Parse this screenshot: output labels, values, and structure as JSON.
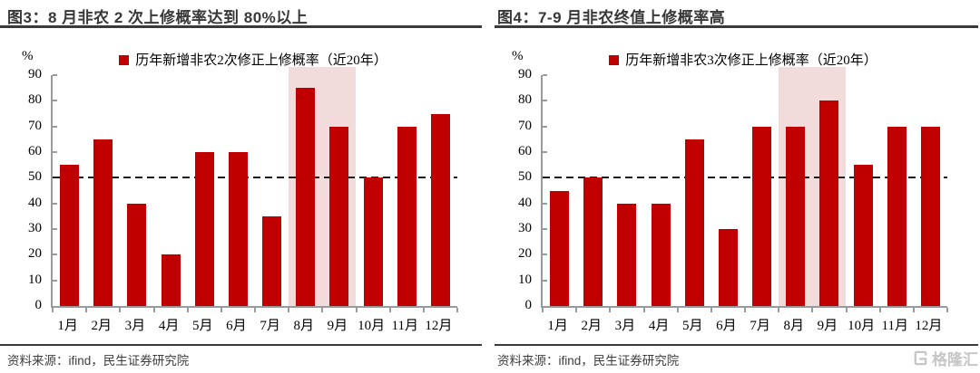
{
  "figures": [
    {
      "title": "图3：8 月非农 2 次上修概率达到 80%以上",
      "legend": "历年新增非农2次修正上修概率（近20年）",
      "y_unit_label": "%",
      "source_label": "资料来源：ifind，民生证券研究院"
    },
    {
      "title": "图4：7-9 月非农终值上修概率高",
      "legend": "历年新增非农3次修正上修概率（近20年）",
      "y_unit_label": "%",
      "source_label": "资料来源：ifind，民生证券研究院"
    }
  ],
  "watermark": {
    "text": "格隆汇",
    "icon": "gelonghui-G-square"
  },
  "colors": {
    "bar": "#C00000",
    "band": "#F2DCDB",
    "axis": "#9A9A9A",
    "reference_line": "#1A1A1A",
    "title_text": "#383838",
    "rule": "#3A3A3A",
    "source_text": "#3D3D3D",
    "watermark": "#C6C6C6"
  },
  "chart_data": [
    {
      "type": "bar",
      "title": "图3：8 月非农 2 次上修概率达到 80%以上",
      "legend": [
        "历年新增非农2次修正上修概率（近20年）"
      ],
      "legend_position": "top",
      "categories": [
        "1月",
        "2月",
        "3月",
        "4月",
        "5月",
        "6月",
        "7月",
        "8月",
        "9月",
        "10月",
        "11月",
        "12月"
      ],
      "values": [
        55,
        65,
        40,
        20,
        60,
        60,
        35,
        85,
        70,
        50,
        70,
        75
      ],
      "xlabel": "",
      "ylabel": "%",
      "ylim": [
        0,
        90
      ],
      "yticks": [
        0,
        10,
        20,
        30,
        40,
        50,
        60,
        70,
        80,
        90
      ],
      "grid": false,
      "reference_line_y": 50,
      "reference_line_style": "dashed",
      "highlight_band_categories": [
        "8月",
        "9月"
      ]
    },
    {
      "type": "bar",
      "title": "图4：7-9 月非农终值上修概率高",
      "legend": [
        "历年新增非农3次修正上修概率（近20年）"
      ],
      "legend_position": "top",
      "categories": [
        "1月",
        "2月",
        "3月",
        "4月",
        "5月",
        "6月",
        "7月",
        "8月",
        "9月",
        "10月",
        "11月",
        "12月"
      ],
      "values": [
        45,
        50,
        40,
        40,
        65,
        30,
        70,
        70,
        80,
        55,
        70,
        70
      ],
      "xlabel": "",
      "ylabel": "%",
      "ylim": [
        0,
        90
      ],
      "yticks": [
        0,
        10,
        20,
        30,
        40,
        50,
        60,
        70,
        80,
        90
      ],
      "grid": false,
      "reference_line_y": 50,
      "reference_line_style": "dashed",
      "highlight_band_categories": [
        "8月",
        "9月"
      ]
    }
  ]
}
